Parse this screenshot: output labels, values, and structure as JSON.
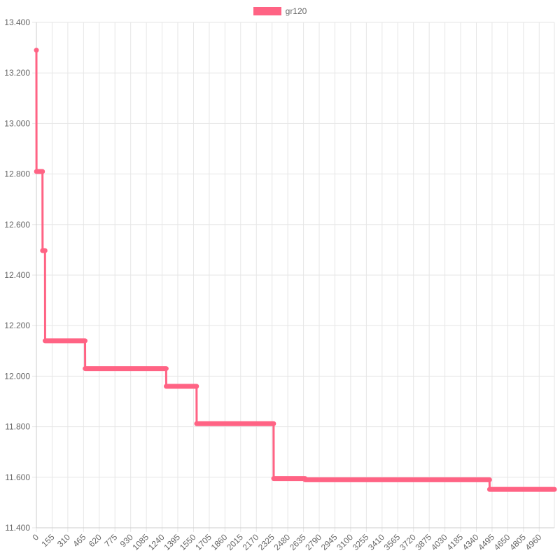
{
  "chart_data": {
    "type": "line",
    "title": "",
    "xlabel": "",
    "ylabel": "",
    "legend_position": "top",
    "grid": true,
    "colors": {
      "series": "#ff6384",
      "grid": "#e6e6e6",
      "tick_text": "#666666"
    },
    "x_tick_labels": [
      "0",
      "155",
      "310",
      "465",
      "620",
      "775",
      "930",
      "1085",
      "1240",
      "1395",
      "1550",
      "1705",
      "1860",
      "2015",
      "2170",
      "2325",
      "2480",
      "2635",
      "2790",
      "2945",
      "3100",
      "3255",
      "3410",
      "3565",
      "3720",
      "3875",
      "4030",
      "4185",
      "4340",
      "4495",
      "4650",
      "4805",
      "4960"
    ],
    "y_tick_labels": [
      "11.400",
      "11.600",
      "11.800",
      "12.000",
      "12.200",
      "12.400",
      "12.600",
      "12.800",
      "13.000",
      "13.200",
      "13.400"
    ],
    "xlim": [
      0,
      5110
    ],
    "ylim": [
      11.4,
      13.4
    ],
    "series": [
      {
        "name": "gr120",
        "steps": [
          {
            "x_start": 0,
            "x_end": 0,
            "y": 13.29
          },
          {
            "x_start": 1,
            "x_end": 60,
            "y": 12.81
          },
          {
            "x_start": 61,
            "x_end": 85,
            "y": 12.497
          },
          {
            "x_start": 86,
            "x_end": 480,
            "y": 12.14
          },
          {
            "x_start": 481,
            "x_end": 1280,
            "y": 12.03
          },
          {
            "x_start": 1281,
            "x_end": 1580,
            "y": 11.96
          },
          {
            "x_start": 1581,
            "x_end": 2340,
            "y": 11.812
          },
          {
            "x_start": 2341,
            "x_end": 2650,
            "y": 11.595
          },
          {
            "x_start": 2651,
            "x_end": 4470,
            "y": 11.59
          },
          {
            "x_start": 4471,
            "x_end": 5110,
            "y": 11.552
          }
        ]
      }
    ]
  }
}
